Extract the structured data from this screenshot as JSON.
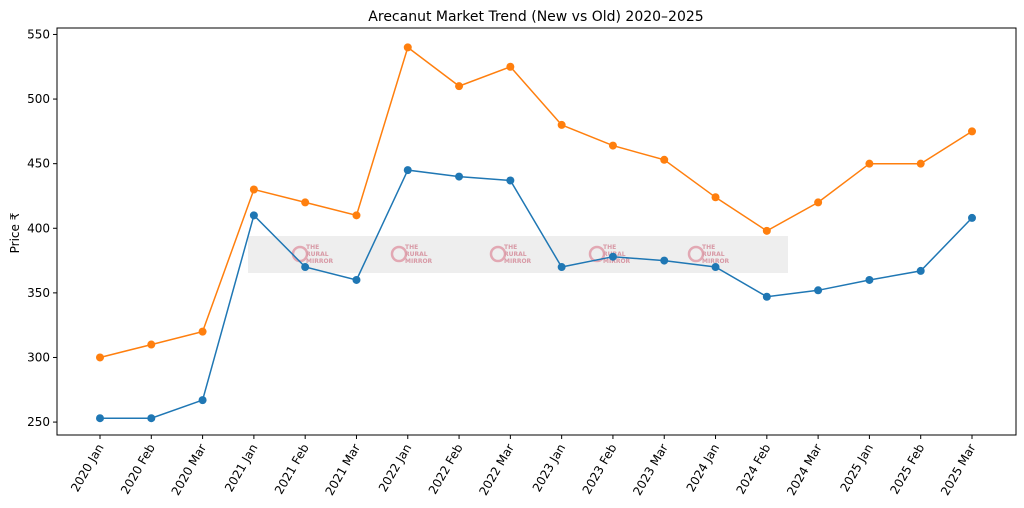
{
  "chart_data": {
    "type": "line",
    "title": "Arecanut Market Trend (New vs Old) 2020–2025",
    "xlabel": "",
    "ylabel": "Price ₹",
    "categories": [
      "2020 Jan",
      "2020 Feb",
      "2020 Mar",
      "2021 Jan",
      "2021 Feb",
      "2021 Mar",
      "2022 Jan",
      "2022 Feb",
      "2022 Mar",
      "2023 Jan",
      "2023 Feb",
      "2023 Mar",
      "2024 Jan",
      "2024 Feb",
      "2024 Mar",
      "2025 Jan",
      "2025 Feb",
      "2025 Mar"
    ],
    "series": [
      {
        "color": "#1f77b4",
        "values": [
          253,
          253,
          267,
          410,
          370,
          360,
          445,
          440,
          437,
          370,
          378,
          375,
          370,
          347,
          352,
          360,
          367,
          408
        ]
      },
      {
        "color": "#ff7f0e",
        "values": [
          300,
          310,
          320,
          430,
          420,
          410,
          540,
          510,
          525,
          480,
          464,
          453,
          424,
          398,
          420,
          450,
          450,
          475
        ]
      }
    ],
    "ylim": [
      240,
      555
    ],
    "yticks": [
      250,
      300,
      350,
      400,
      450,
      500,
      550
    ],
    "grid": false,
    "legend": "none",
    "watermark": {
      "line1": "THE",
      "line2": "RURAL",
      "line3": "MIRROR",
      "repeat": 5
    }
  }
}
